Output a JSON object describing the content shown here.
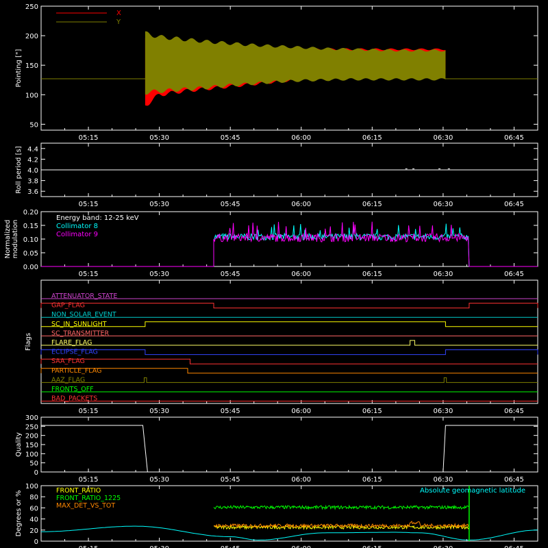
{
  "time_axis": {
    "tick_labels": [
      "05:15",
      "05:30",
      "05:45",
      "06:00",
      "06:15",
      "06:30",
      "06:45"
    ],
    "tick_minutes": [
      315,
      330,
      345,
      360,
      375,
      390,
      405
    ],
    "range_minutes": [
      305,
      410
    ]
  },
  "chart_data": [
    {
      "id": "pointing",
      "type": "area",
      "ylabel": "Pointing [\"]",
      "ylim": [
        40,
        250
      ],
      "yticks": [
        50,
        100,
        150,
        200,
        250
      ],
      "legend_placement": "top-left",
      "series": [
        {
          "name": "X",
          "color": "#ff0000",
          "baseline": 127,
          "active_range": [
            327,
            390.5
          ],
          "envelope": {
            "x": [
              327,
              330,
              335,
              340,
              345,
              350,
              355,
              360,
              365,
              370,
              375,
              380,
              385,
              390
            ],
            "low": [
              82,
              100,
              106,
              110,
              114,
              118,
              122,
              126,
              130,
              133,
              136,
              138,
              139,
              140
            ],
            "high": [
              196,
              190,
              186,
              183,
              181,
              179,
              178,
              177,
              177,
              177,
              177,
              177,
              177,
              177
            ]
          }
        },
        {
          "name": "Y",
          "color": "#808000",
          "baseline": 127,
          "active_range": [
            327,
            390.5
          ],
          "envelope": {
            "x": [
              327,
              330,
              335,
              340,
              345,
              350,
              355,
              360,
              365,
              370,
              375,
              380,
              385,
              390
            ],
            "low": [
              104,
              106,
              109,
              112,
              116,
              119,
              122,
              124,
              125,
              126,
              126,
              126,
              126,
              126
            ],
            "high": [
              204,
              198,
              194,
              190,
              187,
              184,
              182,
              180,
              178,
              177,
              176,
              175,
              175,
              175
            ]
          }
        }
      ]
    },
    {
      "id": "roll",
      "type": "line",
      "ylabel": "Roll period [s]",
      "ylim": [
        3.5,
        4.5
      ],
      "yticks": [
        3.6,
        3.8,
        4.0,
        4.2,
        4.4
      ],
      "series": [
        {
          "name": "",
          "color": "#ffffff",
          "value": 4.0
        }
      ]
    },
    {
      "id": "modulation",
      "type": "line",
      "ylabel": "Normalized modulation",
      "ylim": [
        0.0,
        0.2
      ],
      "yticks": [
        0.0,
        0.05,
        0.1,
        0.15,
        0.2
      ],
      "annotation": "Energy band: 12-25 keV",
      "active_range": [
        341.5,
        395.5
      ],
      "series": [
        {
          "name": "Collimator 8",
          "color": "#00ffff",
          "mean": 0.108,
          "spread": 0.012
        },
        {
          "name": "Collimator 9",
          "color": "#ff00ff",
          "mean": 0.105,
          "spread": 0.015
        }
      ]
    },
    {
      "id": "flags",
      "type": "line",
      "ylabel": "Flags",
      "series": [
        {
          "name": "ATTENUATOR_STATE",
          "color": "#cc44cc",
          "segments": []
        },
        {
          "name": "GAP_FLAG",
          "color": "#ff3333",
          "segments": [
            [
              305,
              341.5
            ],
            [
              395.5,
              410
            ]
          ]
        },
        {
          "name": "NON_SOLAR_EVENT",
          "color": "#00cccc",
          "segments": []
        },
        {
          "name": "SC_IN_SUNLIGHT",
          "color": "#ffff00",
          "segments": [
            [
              327,
              390.5
            ]
          ]
        },
        {
          "name": "SC_TRANSMITTER",
          "color": "#ff6666",
          "segments": []
        },
        {
          "name": "FLARE_FLAG",
          "color": "#ffff66",
          "segments": [
            [
              383,
              384
            ]
          ]
        },
        {
          "name": "ECLIPSE_FLAG",
          "color": "#3344ff",
          "segments": [
            [
              305,
              327
            ],
            [
              390.5,
              410
            ]
          ]
        },
        {
          "name": "SAA_FLAG",
          "color": "#ff3333",
          "segments": [
            [
              305,
              336.5
            ]
          ]
        },
        {
          "name": "PARTICLE_FLAG",
          "color": "#ff8800",
          "segments": [
            [
              305,
              336
            ]
          ]
        },
        {
          "name": "AAZ_FLAG",
          "color": "#808000",
          "segments": [
            [
              326.8,
              327.3
            ],
            [
              390.2,
              390.7
            ]
          ]
        },
        {
          "name": "FRONTS_OFF",
          "color": "#00ff00",
          "segments": []
        },
        {
          "name": "BAD_PACKETS",
          "color": "#ff3333",
          "segments": []
        }
      ]
    },
    {
      "id": "quality",
      "type": "line",
      "ylabel": "Quality",
      "ylim": [
        0,
        300
      ],
      "yticks": [
        0,
        50,
        100,
        150,
        200,
        250,
        300
      ],
      "series": [
        {
          "name": "",
          "color": "#ffffff",
          "x": [
            305,
            326.5,
            327.5,
            390,
            390.5,
            410
          ],
          "y": [
            255,
            255,
            0,
            0,
            255,
            255
          ]
        }
      ]
    },
    {
      "id": "ratios",
      "type": "line",
      "ylabel": "Degrees or %",
      "ylim": [
        0,
        100
      ],
      "yticks": [
        0,
        20,
        40,
        60,
        80,
        100
      ],
      "active_range": [
        341.5,
        395.5
      ],
      "series": [
        {
          "name": "FRONT_RATIO",
          "color": "#ffff00",
          "mean": 25,
          "spread": 3
        },
        {
          "name": "FRONT_RATIO_1225",
          "color": "#00ff00",
          "mean": 61,
          "spread": 3
        },
        {
          "name": "MAX_DET_VS_TOT",
          "color": "#ff8800",
          "mean": 28,
          "spread": 3
        },
        {
          "name": "Absolute geomagnetic latitude",
          "color": "#00ffff",
          "x": [
            305,
            325,
            345,
            351,
            365,
            380,
            385,
            395.5,
            410
          ],
          "y": [
            17,
            27,
            8,
            2,
            15,
            16,
            15,
            2,
            20
          ]
        }
      ],
      "marker": {
        "color": "#00ff00",
        "x": 395.5
      }
    }
  ],
  "colors": {
    "background": "#000000",
    "axes": "#ffffff"
  }
}
